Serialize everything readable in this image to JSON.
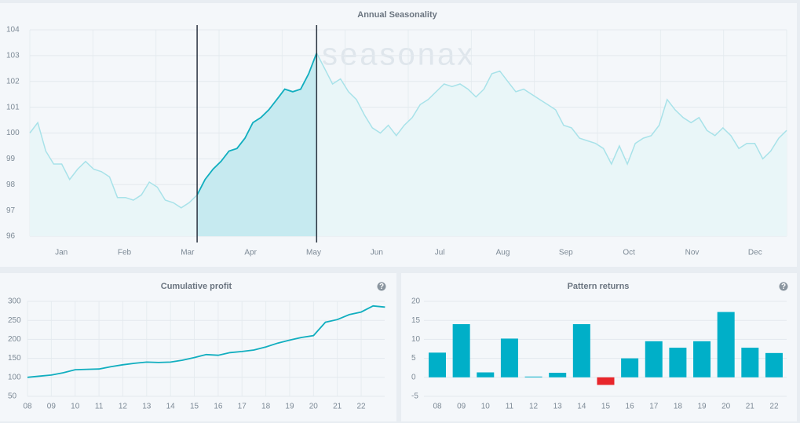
{
  "chart_data": [
    {
      "type": "line",
      "title": "Annual Seasonality",
      "watermark": "seasonax",
      "xtick_labels": [
        "Jan",
        "Feb",
        "Mar",
        "Apr",
        "May",
        "Jun",
        "Jul",
        "Aug",
        "Sep",
        "Oct",
        "Nov",
        "Dec"
      ],
      "values": [
        100,
        100.4,
        99.3,
        98.8,
        98.8,
        98.2,
        98.6,
        98.9,
        98.6,
        98.5,
        98.3,
        97.5,
        97.5,
        97.4,
        97.6,
        98.1,
        97.9,
        97.4,
        97.3,
        97.1,
        97.3,
        97.6,
        98.2,
        98.6,
        98.9,
        99.3,
        99.4,
        99.8,
        100.4,
        100.6,
        100.9,
        101.3,
        101.7,
        101.6,
        101.7,
        102.3,
        103.1,
        102.5,
        101.9,
        102.1,
        101.6,
        101.3,
        100.7,
        100.2,
        100,
        100.3,
        99.9,
        100.3,
        100.6,
        101.1,
        101.3,
        101.6,
        101.9,
        101.8,
        101.9,
        101.7,
        101.4,
        101.7,
        102.3,
        102.4,
        102,
        101.6,
        101.7,
        101.5,
        101.3,
        101.1,
        100.9,
        100.3,
        100.2,
        99.8,
        99.7,
        99.6,
        99.4,
        98.8,
        99.5,
        98.8,
        99.6,
        99.8,
        99.9,
        100.3,
        101.3,
        100.9,
        100.6,
        100.4,
        100.6,
        100.1,
        99.9,
        100.2,
        99.9,
        99.4,
        99.6,
        99.6,
        99,
        99.3,
        99.8,
        100.1
      ],
      "color": "#a8e2e9",
      "highlight_color": "#11aebf",
      "highlight": {
        "start": 21,
        "end": 36
      },
      "ylim": [
        96,
        104
      ],
      "yticks": [
        96,
        97,
        98,
        99,
        100,
        101,
        102,
        103,
        104
      ],
      "grid": true
    },
    {
      "type": "line",
      "title": "Cumulative profit",
      "help": "?",
      "xtick_labels": [
        "08",
        "09",
        "10",
        "11",
        "12",
        "13",
        "14",
        "15",
        "16",
        "17",
        "18",
        "19",
        "20",
        "21",
        "22"
      ],
      "values": [
        100,
        103,
        106,
        112,
        120,
        121,
        122,
        128,
        133,
        137,
        140,
        139,
        140,
        145,
        152,
        160,
        158,
        165,
        168,
        172,
        180,
        190,
        198,
        205,
        210,
        245,
        252,
        265,
        272,
        288,
        285
      ],
      "color": "#11aebf",
      "ylim": [
        50,
        300
      ],
      "yticks": [
        50,
        100,
        150,
        200,
        250,
        300
      ],
      "grid": true
    },
    {
      "type": "bar",
      "title": "Pattern returns",
      "help": "?",
      "categories": [
        "08",
        "09",
        "10",
        "11",
        "12",
        "13",
        "14",
        "15",
        "16",
        "17",
        "18",
        "19",
        "20",
        "21",
        "22"
      ],
      "values": [
        6.5,
        14,
        1.3,
        10.2,
        0.2,
        1.2,
        14,
        -2,
        5,
        9.5,
        7.8,
        9.5,
        17.2,
        7.8,
        6.4
      ],
      "color": "#00afc8",
      "negative_color": "#e8262b",
      "ylim": [
        -5,
        20
      ],
      "yticks": [
        -5,
        0,
        5,
        10,
        15,
        20
      ],
      "grid": true
    }
  ]
}
